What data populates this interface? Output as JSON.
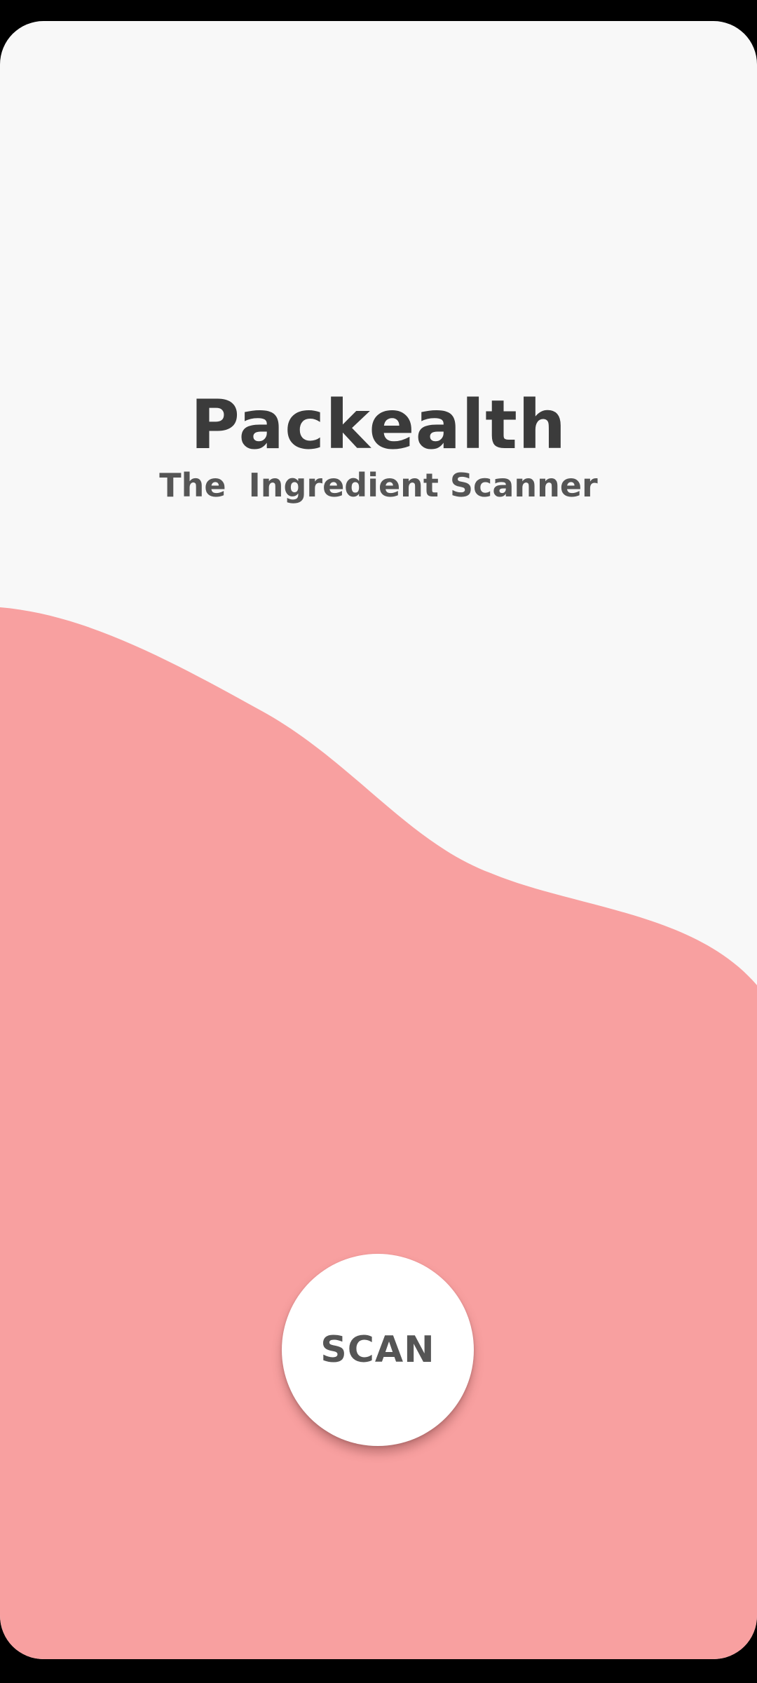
{
  "app": {
    "title": "Packealth",
    "subtitle": "The  Ingredient Scanner"
  },
  "actions": {
    "scan_label": "SCAN"
  },
  "colors": {
    "background": "#f8f8f8",
    "wave": "#f8a0a0",
    "title": "#3b3b3b",
    "subtitle": "#555555",
    "button": "#ffffff"
  }
}
